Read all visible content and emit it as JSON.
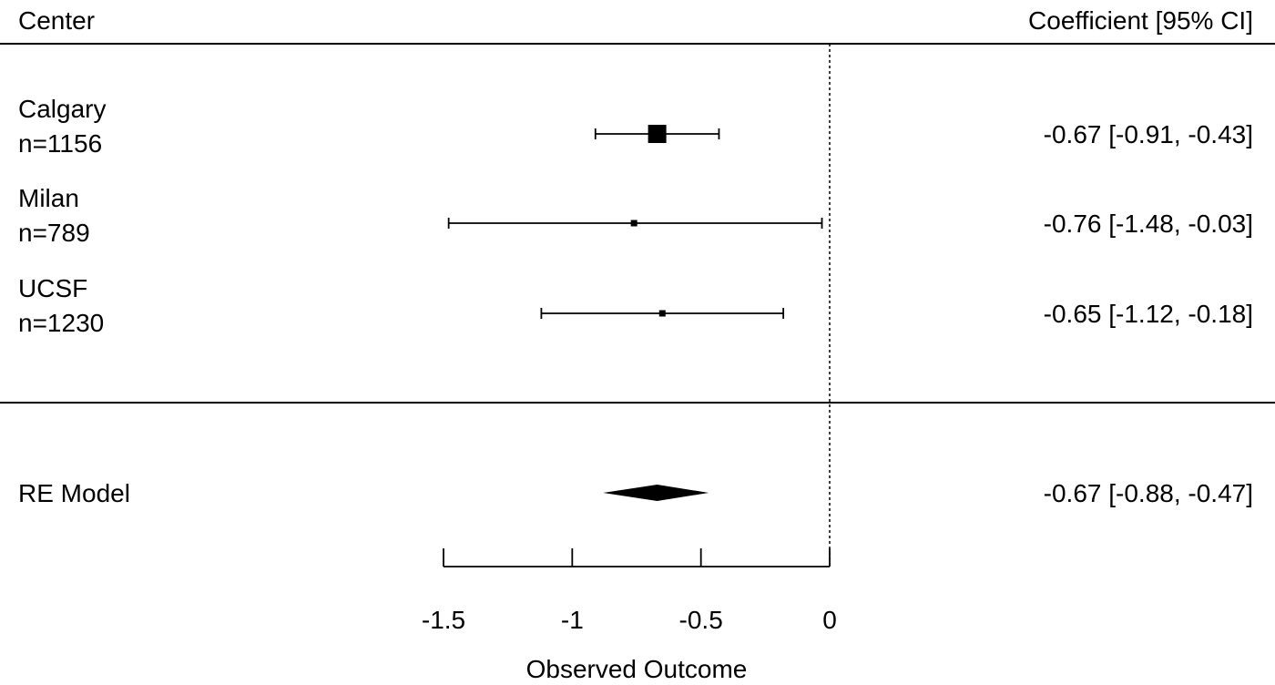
{
  "chart_data": {
    "type": "forest",
    "header_left": "Center",
    "header_right": "Coefficient [95% CI]",
    "studies": [
      {
        "name": "Calgary",
        "n_label": "n=1156",
        "estimate": -0.67,
        "ci_low": -0.91,
        "ci_high": -0.43,
        "ci_text": "-0.67 [-0.91, -0.43]",
        "weight": "large"
      },
      {
        "name": "Milan",
        "n_label": "n=789",
        "estimate": -0.76,
        "ci_low": -1.48,
        "ci_high": -0.03,
        "ci_text": "-0.76 [-1.48, -0.03]",
        "weight": "small"
      },
      {
        "name": "UCSF",
        "n_label": "n=1230",
        "estimate": -0.65,
        "ci_low": -1.12,
        "ci_high": -0.18,
        "ci_text": "-0.65 [-1.12, -0.18]",
        "weight": "small"
      }
    ],
    "summary": {
      "label": "RE Model",
      "estimate": -0.67,
      "ci_low": -0.88,
      "ci_high": -0.47,
      "ci_text": "-0.67 [-0.88, -0.47]"
    },
    "xlabel": "Observed Outcome",
    "xticks": [
      -1.5,
      -1,
      -0.5,
      0
    ],
    "xtick_labels": [
      "-1.5",
      "-1",
      "-0.5",
      "0"
    ],
    "xlim": [
      -1.5,
      0
    ],
    "reference_line": 0
  }
}
